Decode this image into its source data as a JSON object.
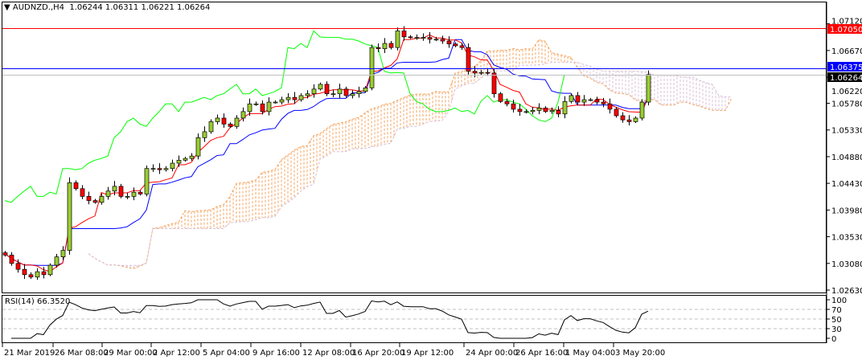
{
  "header": {
    "menu_icon": "triangle-down-icon",
    "symbol": "AUDNZD.,H4",
    "open": "1.06244",
    "high": "1.06311",
    "low": "1.06221",
    "close": "1.06264"
  },
  "rsi": {
    "label": "RSI(14) 66.3520",
    "levels": [
      70,
      50,
      30
    ],
    "axis_labels": [
      "100",
      "70",
      "50",
      "30",
      "0"
    ]
  },
  "colors": {
    "bull": "#9acd32",
    "bear": "#ff0000",
    "tenkan": "#ff0000",
    "kijun": "#0000ff",
    "chikou": "#00ff00",
    "span_a": "#f4a460",
    "span_b": "#d8bfd8",
    "red_line": "#ff0000",
    "blue_line": "#0000ff",
    "bid_line": "#c0c0c0"
  },
  "chart_data": {
    "type": "candlestick",
    "symbol": "AUDNZD.",
    "timeframe": "H4",
    "ylim": [
      1.0263,
      1.0735
    ],
    "price_ticks": [
      "1.07120",
      "1.06670",
      "1.06220",
      "1.05780",
      "1.05330",
      "1.04880",
      "1.04430",
      "1.03980",
      "1.03530",
      "1.03080",
      "1.02630"
    ],
    "time_ticks": [
      "21 Mar 2019",
      "26 Mar 08:00",
      "29 Mar 00:00",
      "2 Apr 12:00",
      "5 Apr 04:00",
      "9 Apr 16:00",
      "12 Apr 08:00",
      "16 Apr 20:00",
      "19 Apr 12:00",
      "24 Apr 00:00",
      "26 Apr 16:00",
      "1 May 04:00",
      "3 May 20:00"
    ],
    "horizontal_lines": [
      {
        "price": 1.0705,
        "label": "1.07050",
        "color": "#ff0000"
      },
      {
        "price": 1.06375,
        "label": "1.06375",
        "color": "#0000ff"
      },
      {
        "price": 1.06264,
        "label": "1.06264",
        "color": "#000000"
      }
    ],
    "closes": [
      1.0322,
      1.0308,
      1.0298,
      1.0289,
      1.0285,
      1.0294,
      1.0289,
      1.0305,
      1.0319,
      1.033,
      1.0444,
      1.0434,
      1.0421,
      1.0414,
      1.0411,
      1.0421,
      1.043,
      1.0438,
      1.0421,
      1.0421,
      1.0428,
      1.0425,
      1.0468,
      1.0468,
      1.0466,
      1.0468,
      1.0477,
      1.0482,
      1.0485,
      1.0489,
      1.052,
      1.053,
      1.0547,
      1.0553,
      1.0543,
      1.0539,
      1.0553,
      1.0564,
      1.0577,
      1.0577,
      1.0564,
      1.058,
      1.058,
      1.0584,
      1.0588,
      1.0584,
      1.0591,
      1.0594,
      1.0602,
      1.061,
      1.0594,
      1.0594,
      1.0602,
      1.0591,
      1.0594,
      1.0598,
      1.0604,
      1.0672,
      1.067,
      1.0679,
      1.0672,
      1.07,
      1.069,
      1.0689,
      1.0689,
      1.0689,
      1.0686,
      1.0686,
      1.0683,
      1.0678,
      1.0675,
      1.0672,
      1.0632,
      1.0629,
      1.063,
      1.0629,
      1.0594,
      1.0581,
      1.0577,
      1.0568,
      1.0564,
      1.0564,
      1.0566,
      1.057,
      1.0564,
      1.0566,
      1.056,
      1.0581,
      1.0591,
      1.058,
      1.0584,
      1.0584,
      1.058,
      1.0577,
      1.0568,
      1.0557,
      1.055,
      1.0547,
      1.0553,
      1.058,
      1.06264
    ],
    "indicators": [
      "Ichimoku Kinko Hyo",
      "RSI(14)"
    ],
    "rsi_last": 66.352
  }
}
